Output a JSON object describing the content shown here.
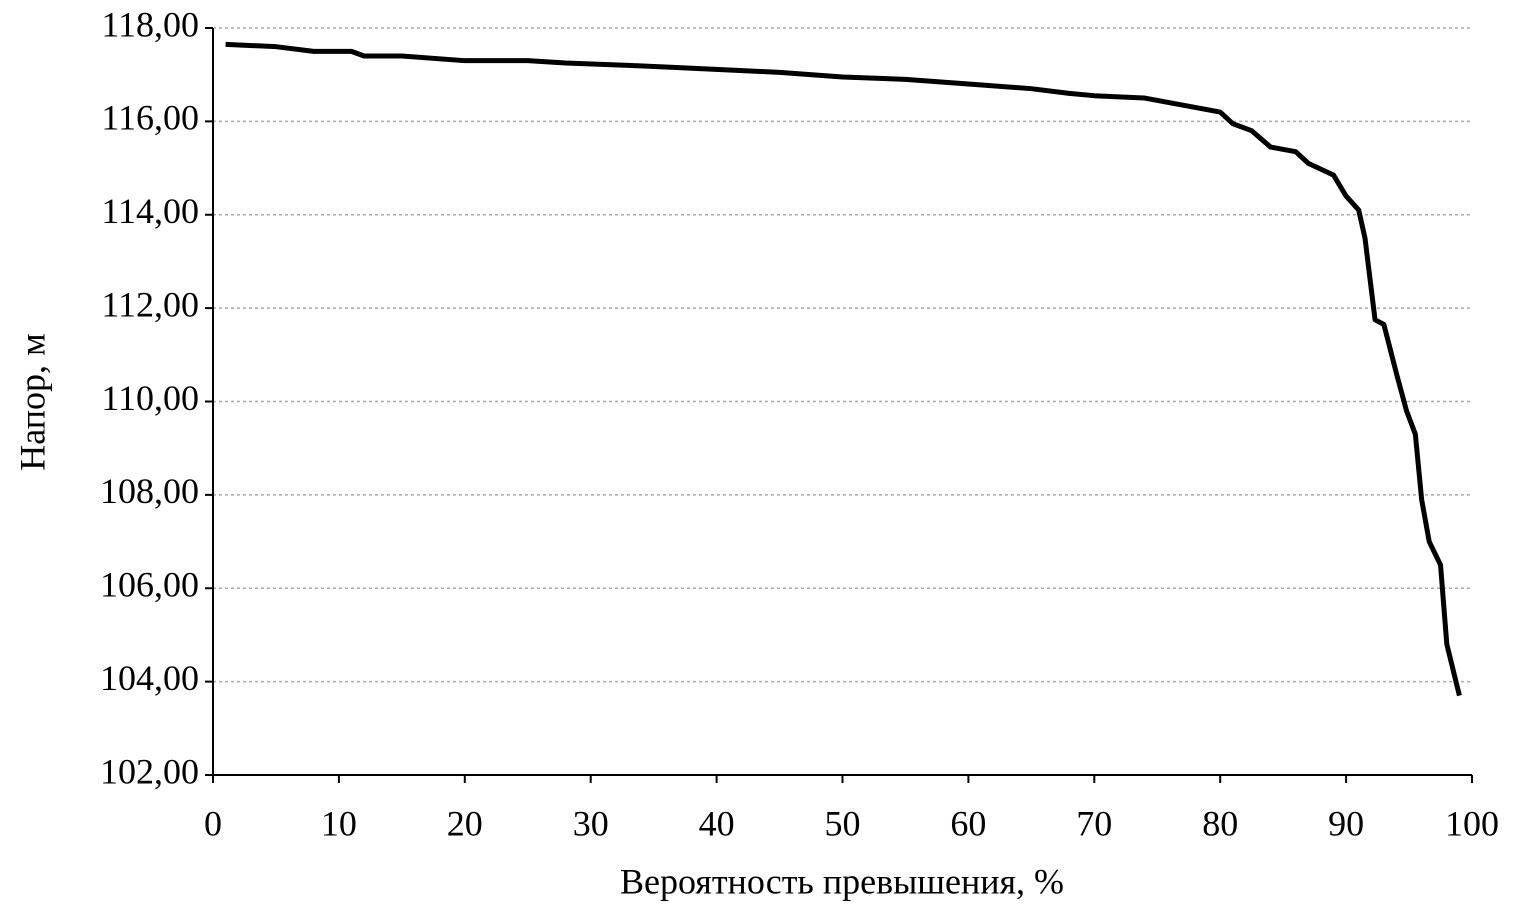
{
  "chart_data": {
    "type": "line",
    "x_label": "Вероятность превышения, %",
    "y_label": "Напор, м",
    "series": [
      {
        "color": "#000000",
        "x": [
          1,
          5,
          8,
          11,
          12,
          15,
          20,
          25,
          28,
          33,
          37,
          41,
          45,
          50,
          55,
          60,
          65,
          68,
          70,
          74,
          77,
          80,
          81,
          82.5,
          84,
          86,
          87,
          88.2,
          89,
          90,
          91,
          91.5,
          92.3,
          93,
          94,
          94.8,
          95.5,
          96,
          96.6,
          97.5,
          98,
          99
        ],
        "values": [
          117.65,
          117.6,
          117.5,
          117.5,
          117.4,
          117.4,
          117.3,
          117.3,
          117.25,
          117.2,
          117.15,
          117.1,
          117.05,
          116.95,
          116.9,
          116.8,
          116.7,
          116.6,
          116.55,
          116.5,
          116.35,
          116.2,
          115.95,
          115.8,
          115.45,
          115.35,
          115.1,
          114.95,
          114.85,
          114.4,
          114.1,
          113.5,
          111.75,
          111.65,
          110.6,
          109.8,
          109.3,
          107.9,
          107.0,
          106.5,
          104.8,
          103.7
        ]
      }
    ],
    "xlim": [
      0,
      100
    ],
    "xticks": [
      0,
      10,
      20,
      30,
      40,
      50,
      60,
      70,
      80,
      90,
      100
    ],
    "ylim": [
      102,
      118
    ],
    "yticks": [
      {
        "value": 102,
        "label": "102,00"
      },
      {
        "value": 104,
        "label": "104,00"
      },
      {
        "value": 106,
        "label": "106,00"
      },
      {
        "value": 108,
        "label": "108,00"
      },
      {
        "value": 110,
        "label": "110,00"
      },
      {
        "value": 112,
        "label": "112,00"
      },
      {
        "value": 114,
        "label": "114,00"
      },
      {
        "value": 116,
        "label": "116,00"
      },
      {
        "value": 118,
        "label": "118,00"
      }
    ],
    "grid": true
  }
}
